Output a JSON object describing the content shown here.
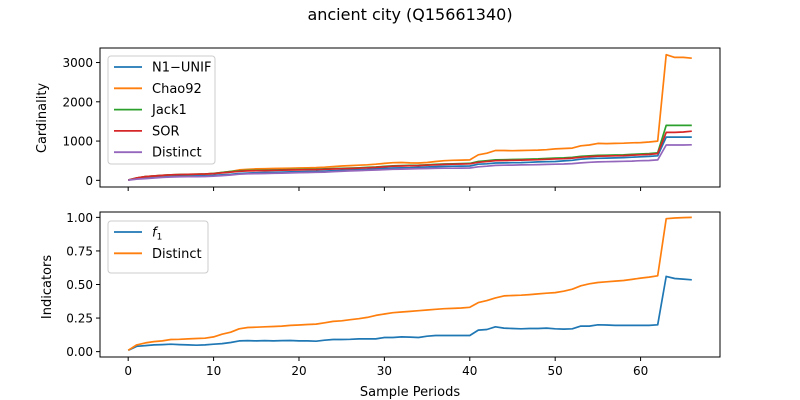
{
  "title": "ancient city (Q15661340)",
  "xlabel": "Sample Periods",
  "colors": {
    "blue": "#1f77b4",
    "orange": "#ff7f0e",
    "green": "#2ca02c",
    "red": "#d62728",
    "purple": "#9467bd"
  },
  "chart_data": [
    {
      "type": "line",
      "ylabel": "Cardinality",
      "xlim": [
        -3.3,
        69.3
      ],
      "ylim": [
        -170,
        3370
      ],
      "xticks": [
        0,
        10,
        20,
        30,
        40,
        50,
        60
      ],
      "xticks_labeled": false,
      "yticks": [
        0,
        1000,
        2000,
        3000
      ],
      "ytick_labels": [
        "0",
        "1000",
        "2000",
        "3000"
      ],
      "legend_position": "upper-left",
      "grid": false,
      "x": [
        0,
        1,
        2,
        3,
        4,
        5,
        6,
        7,
        8,
        9,
        10,
        11,
        12,
        13,
        14,
        15,
        16,
        17,
        18,
        19,
        20,
        21,
        22,
        23,
        24,
        25,
        26,
        27,
        28,
        29,
        30,
        31,
        32,
        33,
        34,
        35,
        36,
        37,
        38,
        39,
        40,
        41,
        42,
        43,
        44,
        45,
        46,
        47,
        48,
        49,
        50,
        51,
        52,
        53,
        54,
        55,
        56,
        57,
        58,
        59,
        60,
        61,
        62,
        63,
        64,
        65,
        66
      ],
      "series": [
        {
          "name": "N1−UNIF",
          "color": "#1f77b4",
          "values": [
            5,
            45,
            65,
            80,
            95,
            105,
            110,
            112,
            115,
            118,
            125,
            140,
            150,
            175,
            185,
            195,
            200,
            205,
            210,
            215,
            220,
            225,
            228,
            235,
            245,
            255,
            262,
            270,
            280,
            295,
            305,
            315,
            320,
            322,
            328,
            340,
            350,
            355,
            360,
            362,
            365,
            410,
            420,
            440,
            445,
            448,
            452,
            460,
            470,
            475,
            480,
            495,
            510,
            540,
            555,
            560,
            565,
            570,
            580,
            590,
            600,
            610,
            625,
            1100,
            1100,
            1100,
            1100
          ]
        },
        {
          "name": "Chao92",
          "color": "#ff7f0e",
          "values": [
            5,
            60,
            95,
            110,
            125,
            140,
            145,
            150,
            155,
            160,
            175,
            200,
            225,
            265,
            280,
            290,
            295,
            300,
            305,
            310,
            315,
            320,
            325,
            335,
            350,
            365,
            375,
            385,
            395,
            410,
            430,
            450,
            455,
            445,
            440,
            455,
            480,
            500,
            510,
            515,
            520,
            650,
            690,
            760,
            760,
            755,
            760,
            765,
            770,
            780,
            800,
            810,
            820,
            880,
            900,
            940,
            935,
            940,
            945,
            955,
            960,
            975,
            1000,
            3200,
            3130,
            3130,
            3110
          ]
        },
        {
          "name": "Jack1",
          "color": "#2ca02c",
          "values": [
            5,
            60,
            95,
            110,
            125,
            140,
            145,
            150,
            155,
            160,
            175,
            200,
            225,
            240,
            250,
            255,
            258,
            262,
            268,
            272,
            276,
            280,
            284,
            290,
            298,
            305,
            312,
            320,
            330,
            340,
            355,
            370,
            375,
            380,
            385,
            395,
            405,
            415,
            420,
            425,
            430,
            480,
            500,
            520,
            525,
            530,
            535,
            540,
            545,
            555,
            565,
            570,
            585,
            610,
            625,
            635,
            640,
            645,
            650,
            660,
            670,
            680,
            700,
            1400,
            1400,
            1400,
            1400
          ]
        },
        {
          "name": "SOR",
          "color": "#d62728",
          "values": [
            5,
            60,
            95,
            110,
            125,
            140,
            145,
            150,
            155,
            160,
            170,
            190,
            210,
            230,
            240,
            245,
            248,
            252,
            258,
            262,
            266,
            270,
            274,
            280,
            288,
            295,
            302,
            310,
            320,
            330,
            345,
            360,
            365,
            370,
            375,
            385,
            395,
            405,
            410,
            415,
            420,
            460,
            480,
            500,
            505,
            510,
            515,
            520,
            525,
            535,
            545,
            550,
            565,
            590,
            605,
            615,
            620,
            625,
            630,
            640,
            650,
            660,
            680,
            1220,
            1220,
            1230,
            1250
          ]
        },
        {
          "name": "Distinct",
          "color": "#9467bd",
          "values": [
            5,
            30,
            45,
            60,
            75,
            85,
            90,
            92,
            95,
            98,
            105,
            120,
            135,
            155,
            165,
            170,
            175,
            180,
            185,
            190,
            195,
            200,
            205,
            210,
            220,
            230,
            240,
            248,
            255,
            262,
            270,
            280,
            285,
            290,
            295,
            300,
            305,
            308,
            310,
            312,
            315,
            345,
            360,
            380,
            385,
            388,
            392,
            395,
            400,
            405,
            410,
            415,
            425,
            445,
            460,
            470,
            475,
            480,
            485,
            490,
            500,
            505,
            520,
            900,
            900,
            900,
            905
          ]
        }
      ]
    },
    {
      "type": "line",
      "ylabel": "Indicators",
      "xlim": [
        -3.3,
        69.3
      ],
      "ylim": [
        -0.04,
        1.04
      ],
      "xticks": [
        0,
        10,
        20,
        30,
        40,
        50,
        60
      ],
      "xtick_labels": [
        "0",
        "10",
        "20",
        "30",
        "40",
        "50",
        "60"
      ],
      "yticks": [
        0,
        0.25,
        0.5,
        0.75,
        1.0
      ],
      "ytick_labels": [
        "0.00",
        "0.25",
        "0.50",
        "0.75",
        "1.00"
      ],
      "legend_position": "upper-left",
      "grid": false,
      "x": [
        0,
        1,
        2,
        3,
        4,
        5,
        6,
        7,
        8,
        9,
        10,
        11,
        12,
        13,
        14,
        15,
        16,
        17,
        18,
        19,
        20,
        21,
        22,
        23,
        24,
        25,
        26,
        27,
        28,
        29,
        30,
        31,
        32,
        33,
        34,
        35,
        36,
        37,
        38,
        39,
        40,
        41,
        42,
        43,
        44,
        45,
        46,
        47,
        48,
        49,
        50,
        51,
        52,
        53,
        54,
        55,
        56,
        57,
        58,
        59,
        60,
        61,
        62,
        63,
        64,
        65,
        66
      ],
      "series": [
        {
          "name": "f1",
          "name_base": "f",
          "name_sub": "1",
          "color": "#1f77b4",
          "values": [
            0.01,
            0.04,
            0.045,
            0.05,
            0.052,
            0.055,
            0.052,
            0.05,
            0.048,
            0.05,
            0.055,
            0.06,
            0.068,
            0.08,
            0.082,
            0.08,
            0.082,
            0.08,
            0.082,
            0.083,
            0.08,
            0.08,
            0.078,
            0.085,
            0.09,
            0.09,
            0.092,
            0.095,
            0.095,
            0.095,
            0.105,
            0.105,
            0.11,
            0.108,
            0.105,
            0.115,
            0.12,
            0.12,
            0.12,
            0.12,
            0.12,
            0.16,
            0.165,
            0.185,
            0.175,
            0.172,
            0.17,
            0.172,
            0.172,
            0.175,
            0.17,
            0.168,
            0.17,
            0.19,
            0.19,
            0.2,
            0.198,
            0.195,
            0.195,
            0.195,
            0.195,
            0.195,
            0.2,
            0.56,
            0.545,
            0.54,
            0.535
          ]
        },
        {
          "name": "Distinct",
          "color": "#ff7f0e",
          "values": [
            0.01,
            0.05,
            0.065,
            0.075,
            0.08,
            0.09,
            0.092,
            0.095,
            0.098,
            0.1,
            0.11,
            0.13,
            0.145,
            0.17,
            0.18,
            0.182,
            0.185,
            0.187,
            0.19,
            0.195,
            0.198,
            0.202,
            0.205,
            0.215,
            0.225,
            0.23,
            0.238,
            0.245,
            0.255,
            0.27,
            0.28,
            0.29,
            0.295,
            0.3,
            0.305,
            0.31,
            0.315,
            0.32,
            0.322,
            0.325,
            0.33,
            0.365,
            0.38,
            0.4,
            0.415,
            0.418,
            0.42,
            0.425,
            0.43,
            0.435,
            0.44,
            0.45,
            0.465,
            0.49,
            0.505,
            0.515,
            0.52,
            0.525,
            0.53,
            0.538,
            0.548,
            0.555,
            0.565,
            0.99,
            0.995,
            0.998,
            1.0
          ]
        }
      ]
    }
  ]
}
